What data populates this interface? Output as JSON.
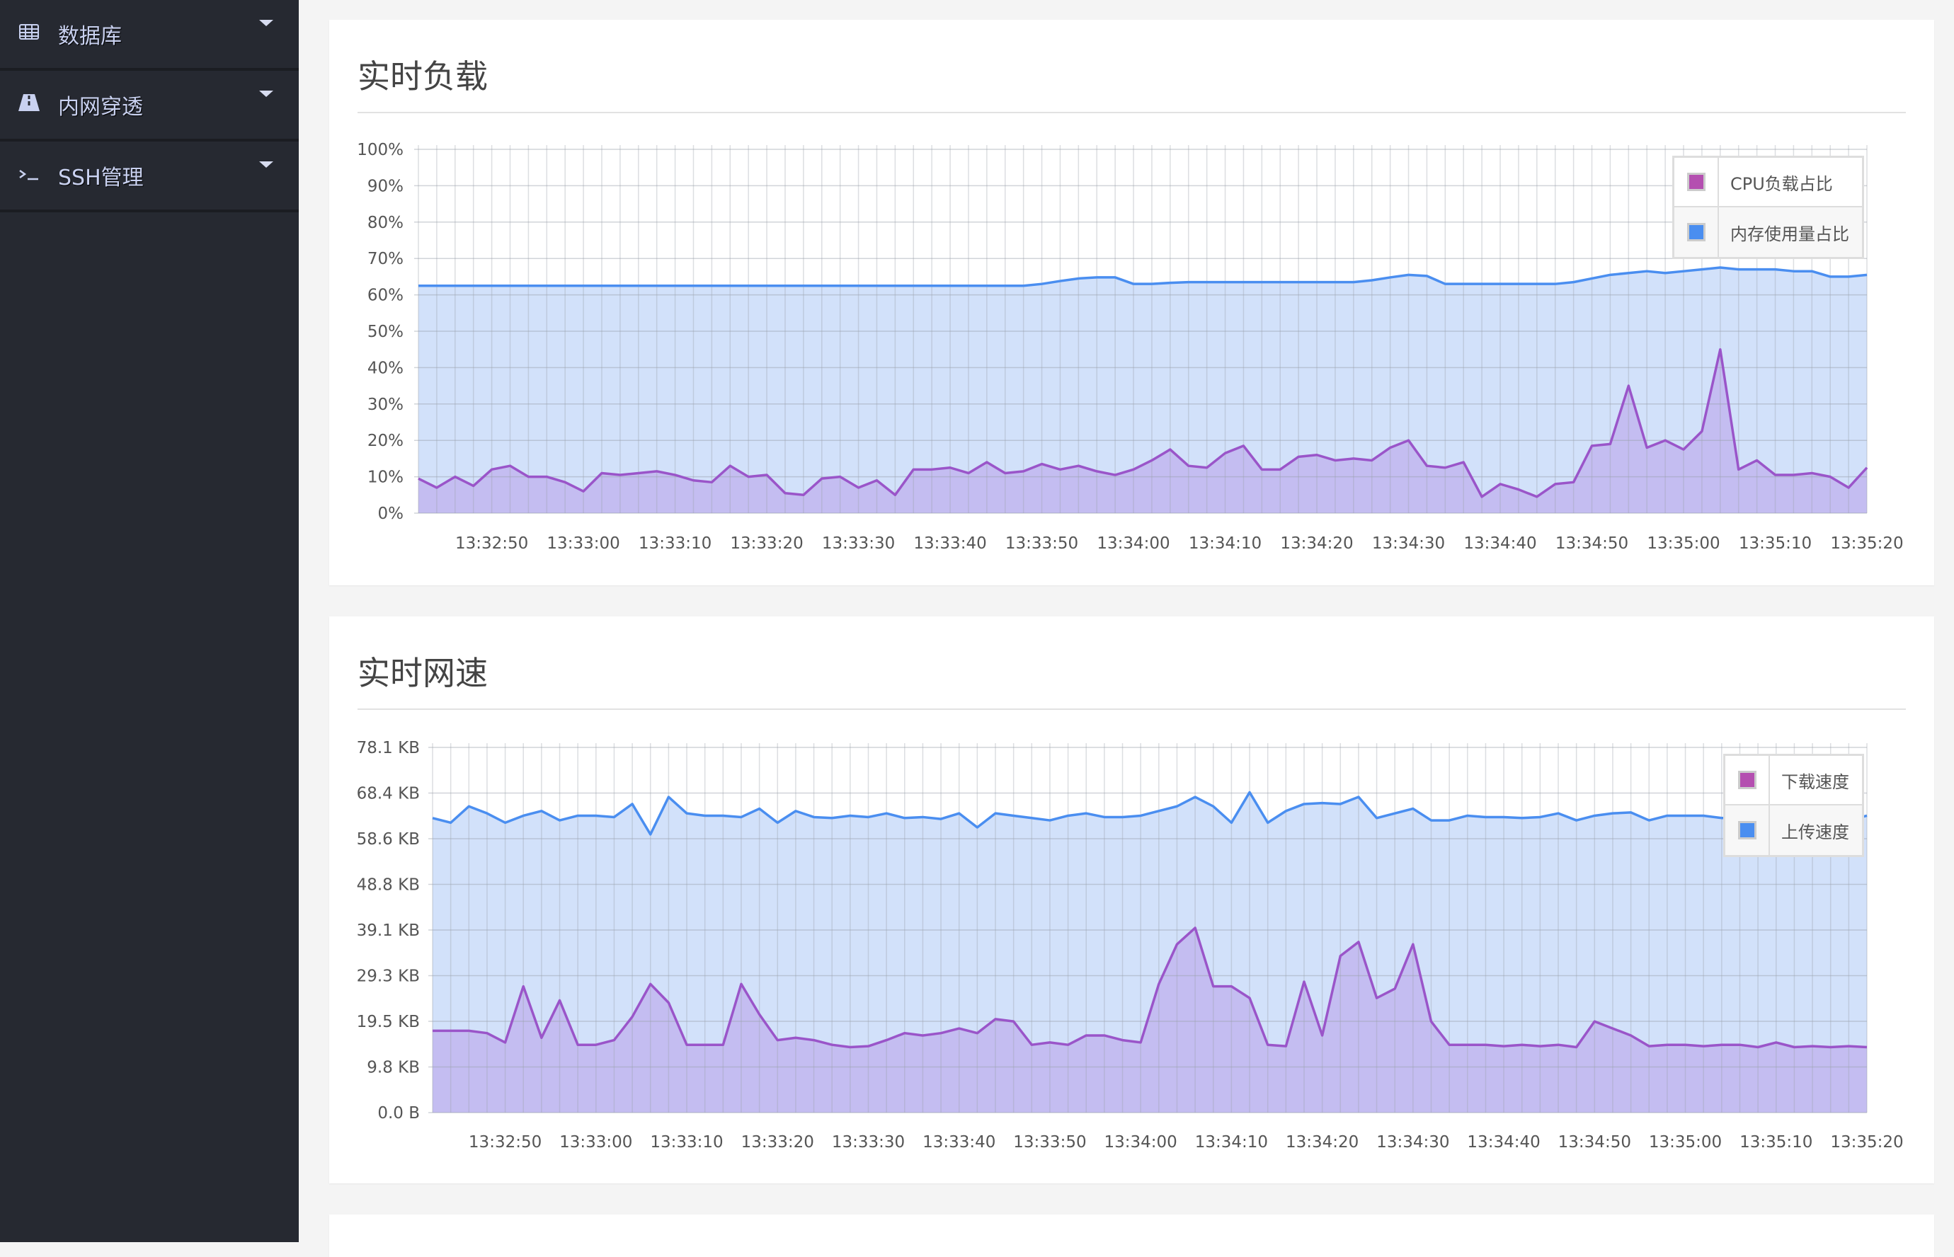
{
  "sidebar": {
    "items": [
      {
        "label": "数据库",
        "icon": "table-icon"
      },
      {
        "label": "内网穿透",
        "icon": "road-icon"
      },
      {
        "label": "SSH管理",
        "icon": "terminal-icon"
      }
    ]
  },
  "panels": [
    {
      "title": "实时负载"
    },
    {
      "title": "实时网速"
    }
  ],
  "colors": {
    "purple_line": "#9a55c9",
    "purple_fill": "#c2b6ee",
    "blue_line": "#4a8ef0",
    "blue_fill": "#d2e1fa",
    "legend_purple": "#b44fb0",
    "legend_blue": "#4a8ef0"
  },
  "chart_data": [
    {
      "type": "area",
      "title": "实时负载",
      "ylim": [
        0,
        100
      ],
      "y_ticks": [
        "0%",
        "10%",
        "20%",
        "30%",
        "40%",
        "50%",
        "60%",
        "70%",
        "80%",
        "90%",
        "100%"
      ],
      "x_ticks": [
        "13:32:50",
        "13:33:00",
        "13:33:10",
        "13:33:20",
        "13:33:30",
        "13:33:40",
        "13:33:50",
        "13:34:00",
        "13:34:10",
        "13:34:20",
        "13:34:30",
        "13:34:40",
        "13:34:50",
        "13:35:00",
        "13:35:10",
        "13:35:20"
      ],
      "grid": true,
      "legend": "top-right",
      "x": [
        "13:32:42",
        "13:32:44",
        "13:32:46",
        "13:32:48",
        "13:32:50",
        "13:32:52",
        "13:32:54",
        "13:32:56",
        "13:32:58",
        "13:33:00",
        "13:33:02",
        "13:33:04",
        "13:33:06",
        "13:33:08",
        "13:33:10",
        "13:33:12",
        "13:33:14",
        "13:33:16",
        "13:33:18",
        "13:33:20",
        "13:33:22",
        "13:33:24",
        "13:33:26",
        "13:33:28",
        "13:33:30",
        "13:33:32",
        "13:33:34",
        "13:33:36",
        "13:33:38",
        "13:33:40",
        "13:33:42",
        "13:33:44",
        "13:33:46",
        "13:33:48",
        "13:33:50",
        "13:33:52",
        "13:33:54",
        "13:33:56",
        "13:33:58",
        "13:34:00",
        "13:34:02",
        "13:34:04",
        "13:34:06",
        "13:34:08",
        "13:34:10",
        "13:34:12",
        "13:34:14",
        "13:34:16",
        "13:34:18",
        "13:34:20",
        "13:34:22",
        "13:34:24",
        "13:34:26",
        "13:34:28",
        "13:34:30",
        "13:34:32",
        "13:34:34",
        "13:34:36",
        "13:34:38",
        "13:34:40",
        "13:34:42",
        "13:34:44",
        "13:34:46",
        "13:34:48",
        "13:34:50",
        "13:34:52",
        "13:34:54",
        "13:34:56",
        "13:34:58",
        "13:35:00",
        "13:35:02",
        "13:35:04",
        "13:35:06",
        "13:35:08",
        "13:35:10",
        "13:35:12",
        "13:35:14",
        "13:35:16",
        "13:35:18",
        "13:35:20"
      ],
      "series": [
        {
          "name": "内存使用量占比",
          "color": "#4a8ef0",
          "values": [
            62.5,
            62.5,
            62.5,
            62.5,
            62.5,
            62.5,
            62.5,
            62.5,
            62.5,
            62.5,
            62.5,
            62.5,
            62.5,
            62.5,
            62.5,
            62.5,
            62.5,
            62.5,
            62.5,
            62.5,
            62.5,
            62.5,
            62.5,
            62.5,
            62.5,
            62.5,
            62.5,
            62.5,
            62.5,
            62.5,
            62.5,
            62.5,
            62.5,
            62.5,
            63,
            63.8,
            64.5,
            64.8,
            64.8,
            63,
            63,
            63.3,
            63.5,
            63.5,
            63.5,
            63.5,
            63.5,
            63.5,
            63.5,
            63.5,
            63.5,
            63.5,
            64,
            64.8,
            65.5,
            65.2,
            63,
            63,
            63,
            63,
            63,
            63,
            63,
            63.5,
            64.5,
            65.5,
            66,
            66.5,
            66,
            66.5,
            67,
            67.5,
            67,
            67,
            67,
            66.5,
            66.5,
            65,
            65,
            65.5
          ]
        },
        {
          "name": "CPU负载占比",
          "color": "#b44fb0",
          "values": [
            9.5,
            7,
            10,
            7.5,
            12,
            13,
            10,
            10,
            8.5,
            6,
            11,
            10.5,
            11,
            11.5,
            10.5,
            9,
            8.5,
            13,
            10,
            10.5,
            5.5,
            5,
            9.5,
            10,
            7,
            9,
            5,
            12,
            12,
            12.5,
            11,
            14,
            11,
            11.5,
            13.5,
            12,
            13,
            11.5,
            10.5,
            12,
            14.5,
            17.5,
            13,
            12.5,
            16.5,
            18.5,
            12,
            12,
            15.5,
            16,
            14.5,
            15,
            14.5,
            18,
            20,
            13,
            12.5,
            14,
            4.5,
            8,
            6.5,
            4.5,
            8,
            8.5,
            18.5,
            19,
            35,
            18,
            20,
            17.5,
            22.5,
            45,
            12,
            14.5,
            10.5,
            10.5,
            11,
            10,
            7,
            12.5
          ]
        }
      ]
    },
    {
      "type": "area",
      "title": "实时网速",
      "ylim": [
        0,
        78.1
      ],
      "y_unit": "KB",
      "y_ticks": [
        "0.0 B",
        "9.8 KB",
        "19.5 KB",
        "29.3 KB",
        "39.1 KB",
        "48.8 KB",
        "58.6 KB",
        "68.4 KB",
        "78.1 KB"
      ],
      "x_ticks": [
        "13:32:50",
        "13:33:00",
        "13:33:10",
        "13:33:20",
        "13:33:30",
        "13:33:40",
        "13:33:50",
        "13:34:00",
        "13:34:10",
        "13:34:20",
        "13:34:30",
        "13:34:40",
        "13:34:50",
        "13:35:00",
        "13:35:10",
        "13:35:20"
      ],
      "grid": true,
      "legend": "top-right",
      "x": [
        "13:32:42",
        "13:32:44",
        "13:32:46",
        "13:32:48",
        "13:32:50",
        "13:32:52",
        "13:32:54",
        "13:32:56",
        "13:32:58",
        "13:33:00",
        "13:33:02",
        "13:33:04",
        "13:33:06",
        "13:33:08",
        "13:33:10",
        "13:33:12",
        "13:33:14",
        "13:33:16",
        "13:33:18",
        "13:33:20",
        "13:33:22",
        "13:33:24",
        "13:33:26",
        "13:33:28",
        "13:33:30",
        "13:33:32",
        "13:33:34",
        "13:33:36",
        "13:33:38",
        "13:33:40",
        "13:33:42",
        "13:33:44",
        "13:33:46",
        "13:33:48",
        "13:33:50",
        "13:33:52",
        "13:33:54",
        "13:33:56",
        "13:33:58",
        "13:34:00",
        "13:34:02",
        "13:34:04",
        "13:34:06",
        "13:34:08",
        "13:34:10",
        "13:34:12",
        "13:34:14",
        "13:34:16",
        "13:34:18",
        "13:34:20",
        "13:34:22",
        "13:34:24",
        "13:34:26",
        "13:34:28",
        "13:34:30",
        "13:34:32",
        "13:34:34",
        "13:34:36",
        "13:34:38",
        "13:34:40",
        "13:34:42",
        "13:34:44",
        "13:34:46",
        "13:34:48",
        "13:34:50",
        "13:34:52",
        "13:34:54",
        "13:34:56",
        "13:34:58",
        "13:35:00",
        "13:35:02",
        "13:35:04",
        "13:35:06",
        "13:35:08",
        "13:35:10",
        "13:35:12",
        "13:35:14",
        "13:35:16",
        "13:35:18",
        "13:35:20"
      ],
      "series": [
        {
          "name": "上传速度",
          "color": "#4a8ef0",
          "values": [
            63,
            62,
            65.5,
            64,
            62,
            63.5,
            64.5,
            62.5,
            63.5,
            63.5,
            63.2,
            66,
            59.5,
            67.5,
            64,
            63.5,
            63.5,
            63.2,
            65,
            62,
            64.5,
            63.2,
            63,
            63.5,
            63.2,
            64,
            63,
            63.2,
            62.8,
            64,
            61,
            64,
            63.5,
            63,
            62.5,
            63.5,
            64,
            63.2,
            63.2,
            63.5,
            64.5,
            65.5,
            67.5,
            65.5,
            62,
            68.5,
            62,
            64.5,
            66,
            66.2,
            66,
            67.5,
            63,
            64,
            65,
            62.5,
            62.5,
            63.5,
            63.2,
            63.2,
            63,
            63.2,
            64,
            62.5,
            63.5,
            64,
            64.2,
            62.5,
            63.5,
            63.5,
            63.5,
            63,
            63,
            63,
            63,
            63,
            63,
            63,
            62.5,
            63.5
          ]
        },
        {
          "name": "下载速度",
          "color": "#b44fb0",
          "values": [
            17.5,
            17.5,
            17.5,
            17,
            15,
            27,
            16,
            24,
            14.5,
            14.5,
            15.5,
            20.5,
            27.5,
            23.5,
            14.5,
            14.5,
            14.5,
            27.5,
            21,
            15.5,
            16,
            15.5,
            14.5,
            14,
            14.2,
            15.5,
            17,
            16.5,
            17,
            18,
            17,
            20,
            19.5,
            14.5,
            15,
            14.5,
            16.5,
            16.5,
            15.5,
            15,
            27.5,
            36,
            39.5,
            27,
            27,
            24.5,
            14.5,
            14.2,
            28,
            16.5,
            33.5,
            36.5,
            24.5,
            26.5,
            36,
            19.5,
            14.5,
            14.5,
            14.5,
            14.2,
            14.5,
            14.2,
            14.5,
            14,
            19.5,
            18,
            16.5,
            14.2,
            14.5,
            14.5,
            14.2,
            14.5,
            14.5,
            14,
            15,
            14,
            14.2,
            14,
            14.2,
            14
          ]
        }
      ]
    }
  ]
}
